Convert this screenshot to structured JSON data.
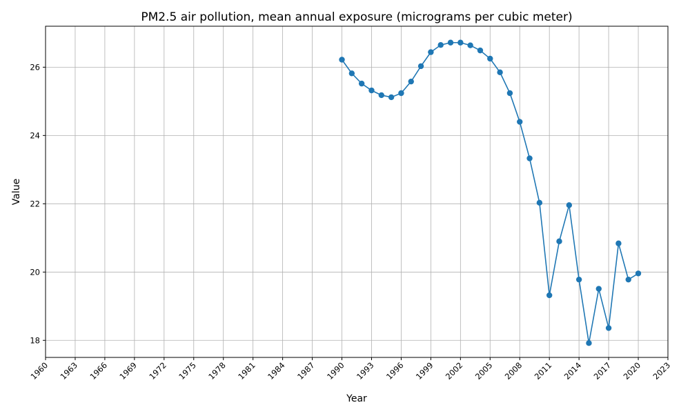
{
  "chart_data": {
    "type": "line",
    "title": "PM2.5 air pollution, mean annual exposure (micrograms per cubic meter)",
    "xlabel": "Year",
    "ylabel": "Value",
    "xlim": [
      1960,
      2023
    ],
    "ylim": [
      17.5,
      27.2
    ],
    "grid": true,
    "legend": "none",
    "color": "#1f77b4",
    "xticks": [
      1960,
      1963,
      1966,
      1969,
      1972,
      1975,
      1978,
      1981,
      1984,
      1987,
      1990,
      1993,
      1996,
      1999,
      2002,
      2005,
      2008,
      2011,
      2014,
      2017,
      2020,
      2023
    ],
    "yticks": [
      18,
      20,
      22,
      24,
      26
    ],
    "x": [
      1990,
      1991,
      1992,
      1993,
      1994,
      1995,
      1996,
      1997,
      1998,
      1999,
      2000,
      2001,
      2002,
      2003,
      2004,
      2005,
      2006,
      2007,
      2008,
      2009,
      2010,
      2011,
      2012,
      2013,
      2014,
      2015,
      2016,
      2017,
      2018,
      2019,
      2020
    ],
    "values": [
      26.22,
      25.82,
      25.52,
      25.32,
      25.18,
      25.12,
      25.24,
      25.58,
      26.03,
      26.44,
      26.65,
      26.72,
      26.72,
      26.64,
      26.49,
      26.25,
      25.85,
      25.24,
      24.4,
      23.33,
      22.03,
      19.32,
      20.9,
      21.96,
      19.78,
      17.92,
      19.51,
      18.36,
      20.84,
      19.78,
      19.96
    ]
  }
}
